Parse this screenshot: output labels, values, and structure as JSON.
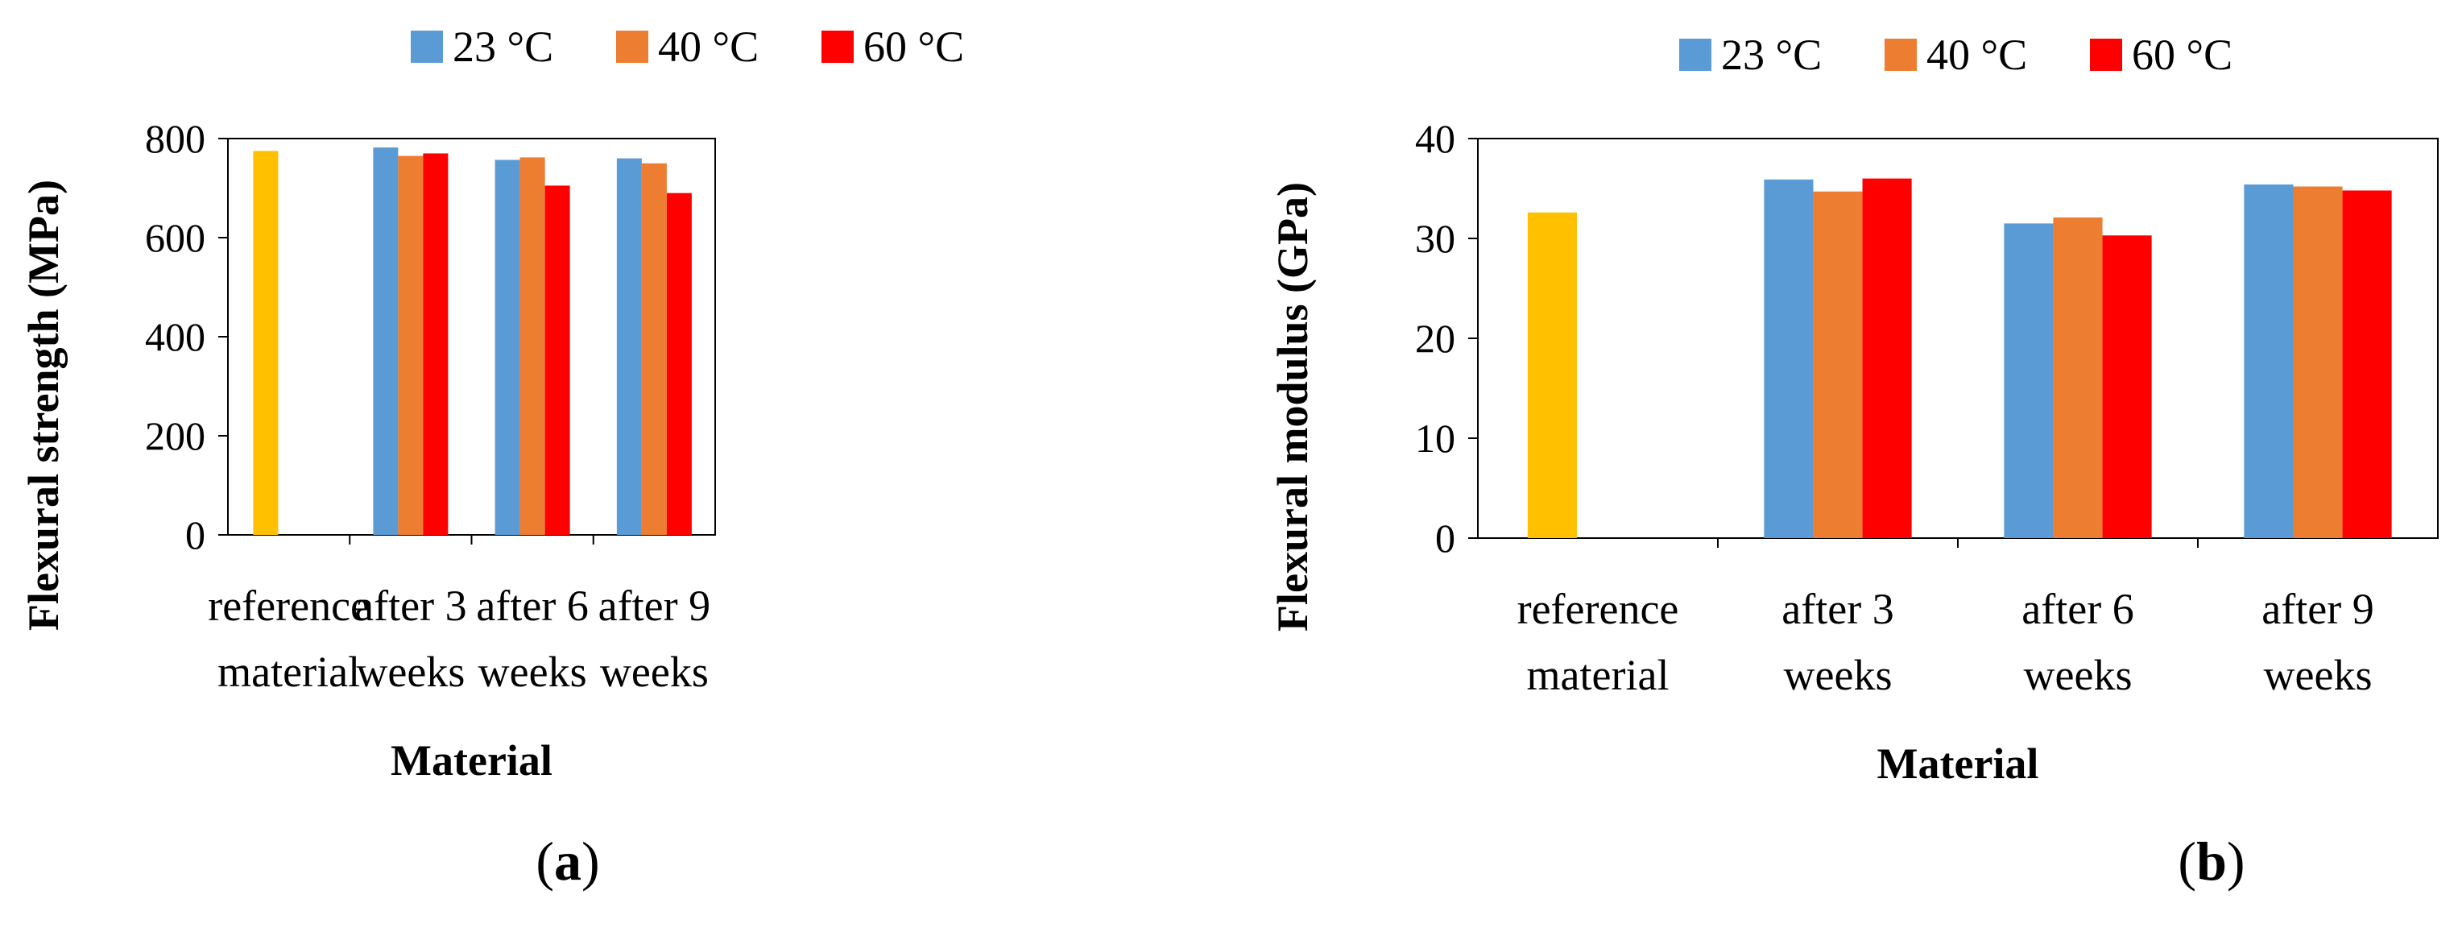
{
  "chart_data": [
    {
      "type": "bar",
      "panel_label": "a",
      "title": "",
      "xlabel": "Material",
      "ylabel": "Flexural strength (MPa)",
      "ylim": [
        0,
        800
      ],
      "yticks": [
        "0",
        "200",
        "400",
        "600",
        "800"
      ],
      "categories": [
        [
          "reference",
          "material"
        ],
        [
          "after 3",
          "weeks"
        ],
        [
          "after 6",
          "weeks"
        ],
        [
          "after 9",
          "weeks"
        ]
      ],
      "legend": [
        "23 °C",
        "40 °C",
        "60 °C"
      ],
      "reference": {
        "value": 775,
        "color": "#FFC000"
      },
      "series": [
        {
          "name": "23 °C",
          "color": "#5B9BD5",
          "values": [
            null,
            782,
            757,
            760
          ]
        },
        {
          "name": "40 °C",
          "color": "#ED7D31",
          "values": [
            null,
            765,
            762,
            750
          ]
        },
        {
          "name": "60 °C",
          "color": "#FF0000",
          "values": [
            null,
            770,
            705,
            690
          ]
        }
      ]
    },
    {
      "type": "bar",
      "panel_label": "b",
      "title": "",
      "xlabel": "Material",
      "ylabel": "Flexural modulus (GPa)",
      "ylim": [
        0,
        40
      ],
      "yticks": [
        "0",
        "10",
        "20",
        "30",
        "40"
      ],
      "categories": [
        [
          "reference",
          "material"
        ],
        [
          "after 3",
          "weeks"
        ],
        [
          "after 6",
          "weeks"
        ],
        [
          "after 9",
          "weeks"
        ]
      ],
      "legend": [
        "23 °C",
        "40 °C",
        "60 °C"
      ],
      "reference": {
        "value": 32.6,
        "color": "#FFC000"
      },
      "series": [
        {
          "name": "23 °C",
          "color": "#5B9BD5",
          "values": [
            null,
            35.9,
            31.5,
            35.4
          ]
        },
        {
          "name": "40 °C",
          "color": "#ED7D31",
          "values": [
            null,
            34.7,
            32.1,
            35.2
          ]
        },
        {
          "name": "60 °C",
          "color": "#FF0000",
          "values": [
            null,
            36.0,
            30.3,
            34.8
          ]
        }
      ]
    }
  ]
}
